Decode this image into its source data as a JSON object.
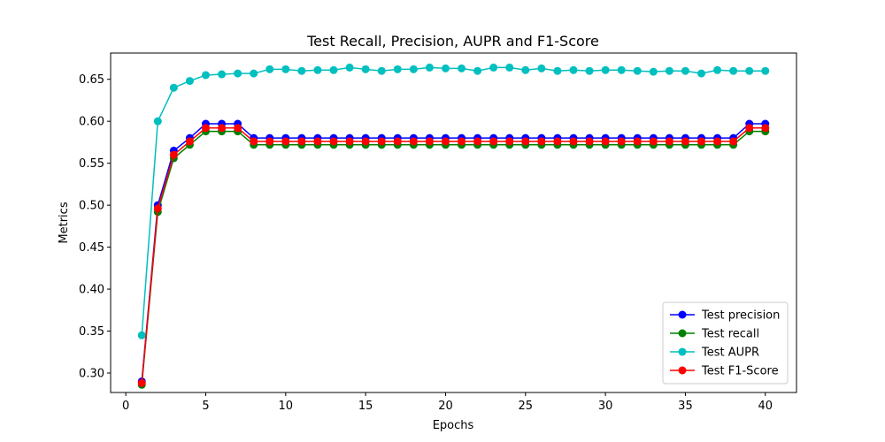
{
  "chart_data": {
    "type": "line",
    "title": "Test Recall, Precision, AUPR and F1-Score",
    "xlabel": "Epochs",
    "ylabel": "Metrics",
    "xlim": [
      -0.95,
      41.95
    ],
    "ylim": [
      0.2768,
      0.6813
    ],
    "xticks": [
      0,
      5,
      10,
      15,
      20,
      25,
      30,
      35,
      40
    ],
    "yticks": [
      0.3,
      0.35,
      0.4,
      0.45,
      0.5,
      0.55,
      0.6,
      0.65
    ],
    "grid": false,
    "legend_position": "lower-right",
    "x": [
      1,
      2,
      3,
      4,
      5,
      6,
      7,
      8,
      9,
      10,
      11,
      12,
      13,
      14,
      15,
      16,
      17,
      18,
      19,
      20,
      21,
      22,
      23,
      24,
      25,
      26,
      27,
      28,
      29,
      30,
      31,
      32,
      33,
      34,
      35,
      36,
      37,
      38,
      39,
      40
    ],
    "series": [
      {
        "name": "Test precision",
        "color": "#0000ff",
        "values": [
          0.29,
          0.5,
          0.565,
          0.58,
          0.597,
          0.597,
          0.597,
          0.58,
          0.58,
          0.58,
          0.58,
          0.58,
          0.58,
          0.58,
          0.58,
          0.58,
          0.58,
          0.58,
          0.58,
          0.58,
          0.58,
          0.58,
          0.58,
          0.58,
          0.58,
          0.58,
          0.58,
          0.58,
          0.58,
          0.58,
          0.58,
          0.58,
          0.58,
          0.58,
          0.58,
          0.58,
          0.58,
          0.58,
          0.597,
          0.597
        ]
      },
      {
        "name": "Test recall",
        "color": "#008000",
        "values": [
          0.286,
          0.492,
          0.556,
          0.572,
          0.588,
          0.588,
          0.588,
          0.572,
          0.572,
          0.572,
          0.572,
          0.572,
          0.572,
          0.572,
          0.572,
          0.572,
          0.572,
          0.572,
          0.572,
          0.572,
          0.572,
          0.572,
          0.572,
          0.572,
          0.572,
          0.572,
          0.572,
          0.572,
          0.572,
          0.572,
          0.572,
          0.572,
          0.572,
          0.572,
          0.572,
          0.572,
          0.572,
          0.572,
          0.588,
          0.588
        ]
      },
      {
        "name": "Test AUPR",
        "color": "#00bfbf",
        "values": [
          0.345,
          0.6,
          0.64,
          0.648,
          0.655,
          0.656,
          0.657,
          0.657,
          0.662,
          0.662,
          0.66,
          0.661,
          0.661,
          0.664,
          0.662,
          0.66,
          0.662,
          0.662,
          0.664,
          0.663,
          0.663,
          0.66,
          0.664,
          0.664,
          0.661,
          0.663,
          0.66,
          0.661,
          0.66,
          0.661,
          0.661,
          0.66,
          0.659,
          0.66,
          0.66,
          0.657,
          0.661,
          0.66,
          0.66,
          0.66
        ]
      },
      {
        "name": "Test F1-Score",
        "color": "#ff0000",
        "values": [
          0.288,
          0.496,
          0.56,
          0.576,
          0.592,
          0.592,
          0.592,
          0.576,
          0.576,
          0.576,
          0.576,
          0.576,
          0.576,
          0.576,
          0.576,
          0.576,
          0.576,
          0.576,
          0.576,
          0.576,
          0.576,
          0.576,
          0.576,
          0.576,
          0.576,
          0.576,
          0.576,
          0.576,
          0.576,
          0.576,
          0.576,
          0.576,
          0.576,
          0.576,
          0.576,
          0.576,
          0.576,
          0.576,
          0.592,
          0.592
        ]
      }
    ]
  }
}
